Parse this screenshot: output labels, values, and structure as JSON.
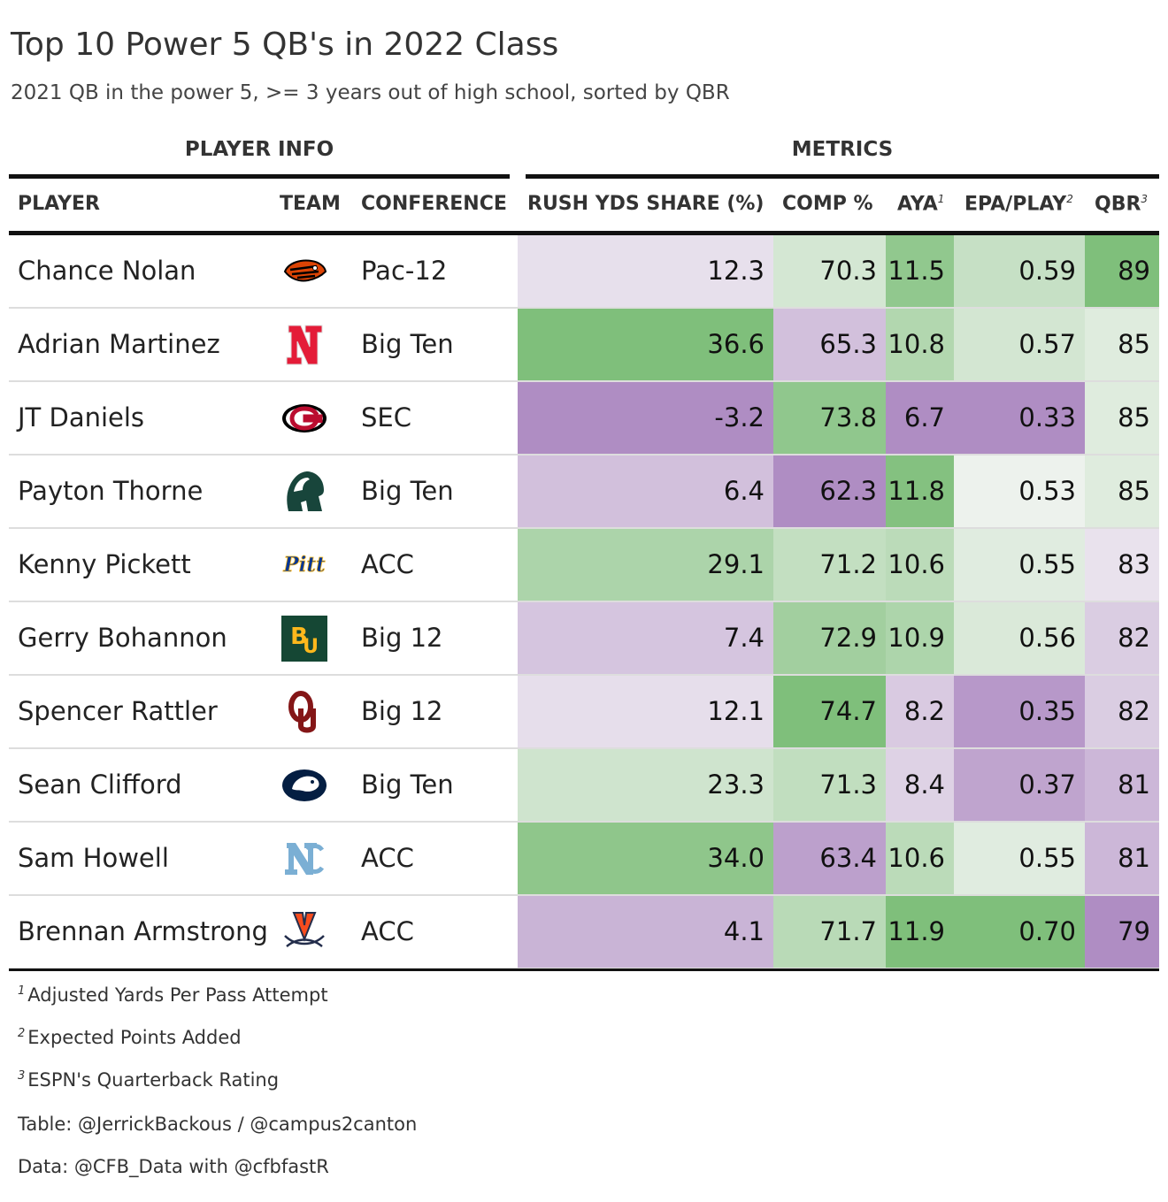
{
  "title": "Top 10 Power 5 QB's in 2022 Class",
  "subtitle": "2021 QB in the power 5, >= 3 years out of high school, sorted by QBR",
  "spanners": {
    "player_info": "PLAYER INFO",
    "metrics": "METRICS"
  },
  "columns": {
    "player": "PLAYER",
    "team": "TEAM",
    "conference": "CONFERENCE",
    "rush": "RUSH YDS SHARE (%)",
    "comp": "COMP %",
    "aya": "AYA",
    "aya_mark": "1",
    "epa": "EPA/PLAY",
    "epa_mark": "2",
    "qbr": "QBR",
    "qbr_mark": "3"
  },
  "colors": {
    "green_high": "#7fbf7b",
    "neutral": "#f7f7f7",
    "purple_low": "#af8dc3"
  },
  "chart_data": {
    "type": "table",
    "title": "Top 10 Power 5 QB's in 2022 Class",
    "color_scale": "per-column diverging purple (low) to green (high)",
    "rows": [
      {
        "player": "Chance Nolan",
        "team_icon": "oregon-state-beaver-logo",
        "conference": "Pac-12",
        "rush": "12.3",
        "comp": "70.3",
        "aya": "11.5",
        "epa": "0.59",
        "qbr": "89"
      },
      {
        "player": "Adrian Martinez",
        "team_icon": "nebraska-n-logo",
        "conference": "Big Ten",
        "rush": "36.6",
        "comp": "65.3",
        "aya": "10.8",
        "epa": "0.57",
        "qbr": "85"
      },
      {
        "player": "JT Daniels",
        "team_icon": "georgia-g-logo",
        "conference": "SEC",
        "rush": "-3.2",
        "comp": "73.8",
        "aya": "6.7",
        "epa": "0.33",
        "qbr": "85"
      },
      {
        "player": "Payton Thorne",
        "team_icon": "michigan-state-spartan-logo",
        "conference": "Big Ten",
        "rush": "6.4",
        "comp": "62.3",
        "aya": "11.8",
        "epa": "0.53",
        "qbr": "85"
      },
      {
        "player": "Kenny Pickett",
        "team_icon": "pitt-script-logo",
        "conference": "ACC",
        "rush": "29.1",
        "comp": "71.2",
        "aya": "10.6",
        "epa": "0.55",
        "qbr": "83"
      },
      {
        "player": "Gerry Bohannon",
        "team_icon": "baylor-bu-logo",
        "conference": "Big 12",
        "rush": "7.4",
        "comp": "72.9",
        "aya": "10.9",
        "epa": "0.56",
        "qbr": "82"
      },
      {
        "player": "Spencer Rattler",
        "team_icon": "oklahoma-ou-logo",
        "conference": "Big 12",
        "rush": "12.1",
        "comp": "74.7",
        "aya": "8.2",
        "epa": "0.35",
        "qbr": "82"
      },
      {
        "player": "Sean Clifford",
        "team_icon": "penn-state-lion-logo",
        "conference": "Big Ten",
        "rush": "23.3",
        "comp": "71.3",
        "aya": "8.4",
        "epa": "0.37",
        "qbr": "81"
      },
      {
        "player": "Sam Howell",
        "team_icon": "north-carolina-nc-logo",
        "conference": "ACC",
        "rush": "34.0",
        "comp": "63.4",
        "aya": "10.6",
        "epa": "0.55",
        "qbr": "81"
      },
      {
        "player": "Brennan Armstrong",
        "team_icon": "virginia-v-sabres-logo",
        "conference": "ACC",
        "rush": "4.1",
        "comp": "71.7",
        "aya": "11.9",
        "epa": "0.70",
        "qbr": "79"
      }
    ]
  },
  "footnotes": [
    {
      "mark": "1",
      "text": "Adjusted Yards Per Pass Attempt"
    },
    {
      "mark": "2",
      "text": "Expected Points Added"
    },
    {
      "mark": "3",
      "text": "ESPN's Quarterback Rating"
    }
  ],
  "credits": {
    "table": "Table: @JerrickBackous / @campus2canton",
    "data": "Data: @CFB_Data with @cfbfastR"
  }
}
